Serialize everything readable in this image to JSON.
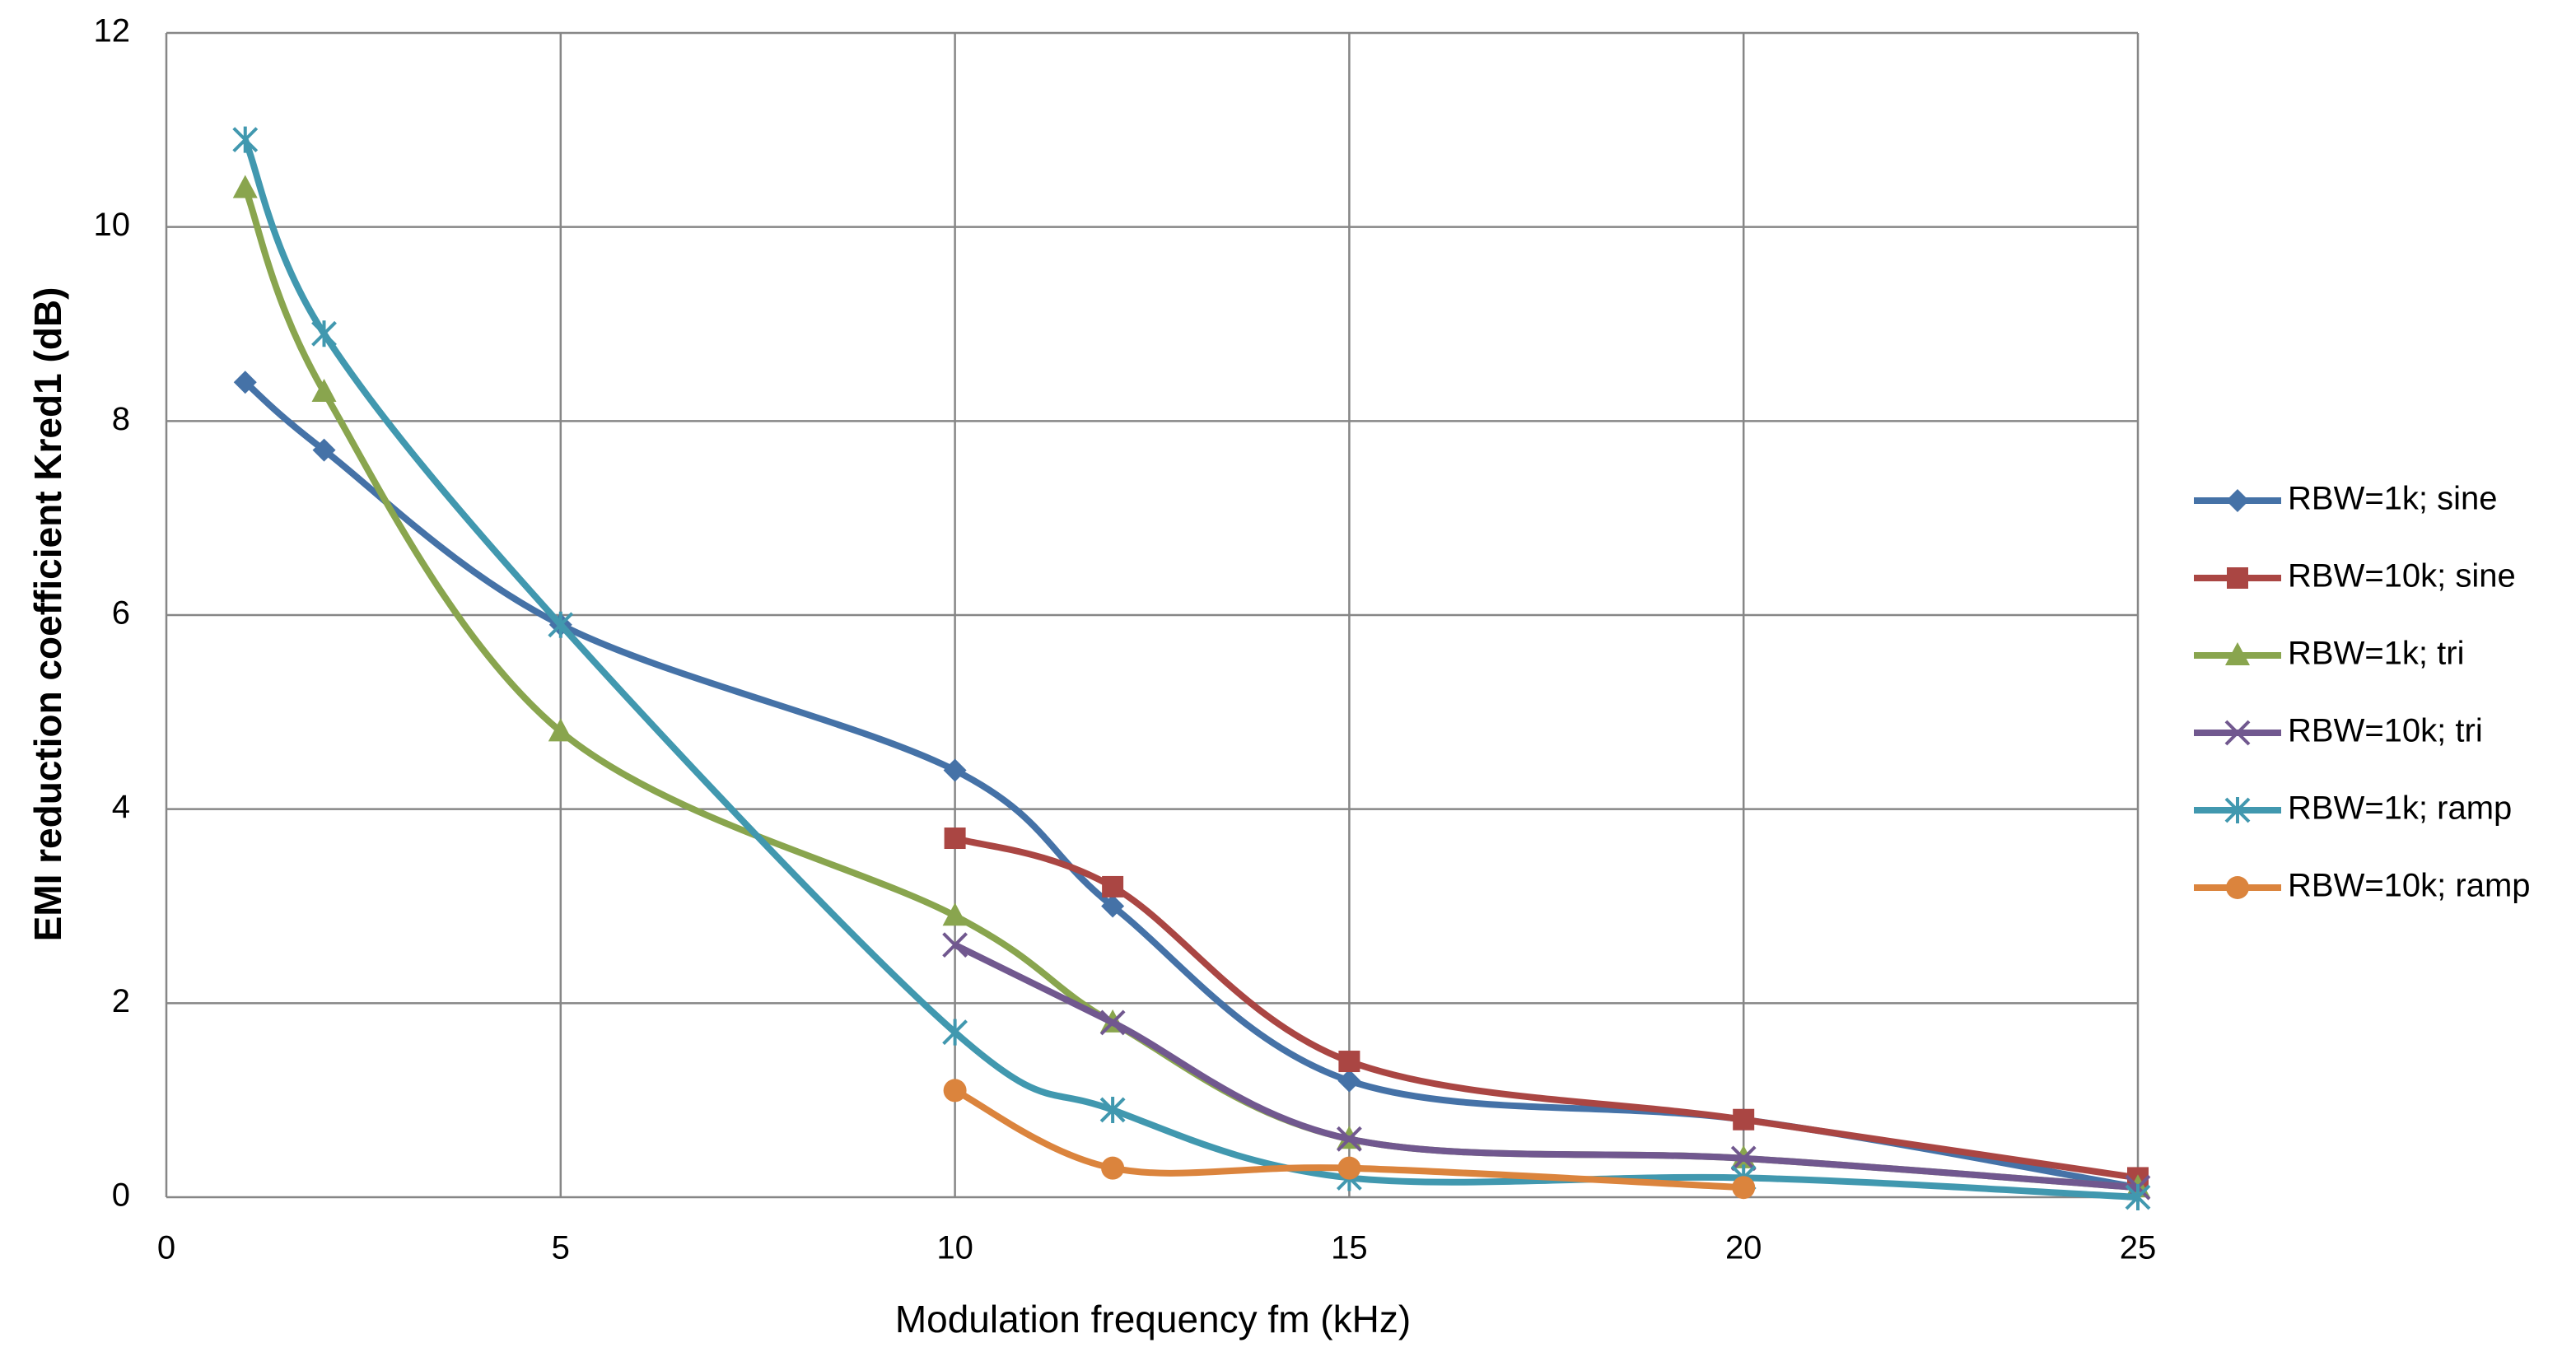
{
  "chart_data": {
    "type": "line",
    "xlabel": "Modulation frequency fm (kHz)",
    "ylabel": "EMI reduction coefficient Kred1 (dB)",
    "xlim": [
      0,
      25
    ],
    "xticks": [
      0,
      5,
      10,
      15,
      20,
      25
    ],
    "ylim": [
      0,
      12
    ],
    "yticks": [
      0,
      2,
      4,
      6,
      8,
      10,
      12
    ],
    "grid": true,
    "smooth": true,
    "legend": "right",
    "series": [
      {
        "name": "RBW=1k; sine",
        "color": "#4572a7",
        "marker": "diamond",
        "x": [
          1,
          2,
          5,
          10,
          12,
          15,
          20,
          25
        ],
        "values": [
          8.4,
          7.7,
          5.9,
          4.4,
          3.0,
          1.2,
          0.8,
          0.1
        ]
      },
      {
        "name": "RBW=10k; sine",
        "color": "#aa4643",
        "marker": "square",
        "x": [
          10,
          12,
          15,
          20,
          25
        ],
        "values": [
          3.7,
          3.2,
          1.4,
          0.8,
          0.2
        ]
      },
      {
        "name": "RBW=1k; tri",
        "color": "#89a54e",
        "marker": "triangle",
        "x": [
          1,
          2,
          5,
          10,
          12,
          15,
          20,
          25
        ],
        "values": [
          10.4,
          8.3,
          4.8,
          2.9,
          1.8,
          0.6,
          0.4,
          0.1
        ]
      },
      {
        "name": "RBW=10k; tri",
        "color": "#71588f",
        "marker": "x",
        "x": [
          10,
          12,
          15,
          20,
          25
        ],
        "values": [
          2.6,
          1.8,
          0.6,
          0.4,
          0.1
        ]
      },
      {
        "name": "RBW=1k; ramp",
        "color": "#4198af",
        "marker": "star",
        "x": [
          1,
          2,
          5,
          10,
          12,
          15,
          20,
          25
        ],
        "values": [
          10.9,
          8.9,
          5.9,
          1.7,
          0.9,
          0.2,
          0.2,
          0.0
        ]
      },
      {
        "name": "RBW=10k; ramp",
        "color": "#db843d",
        "marker": "circle",
        "x": [
          10,
          12,
          15,
          20
        ],
        "values": [
          1.1,
          0.3,
          0.3,
          0.1
        ]
      }
    ]
  }
}
